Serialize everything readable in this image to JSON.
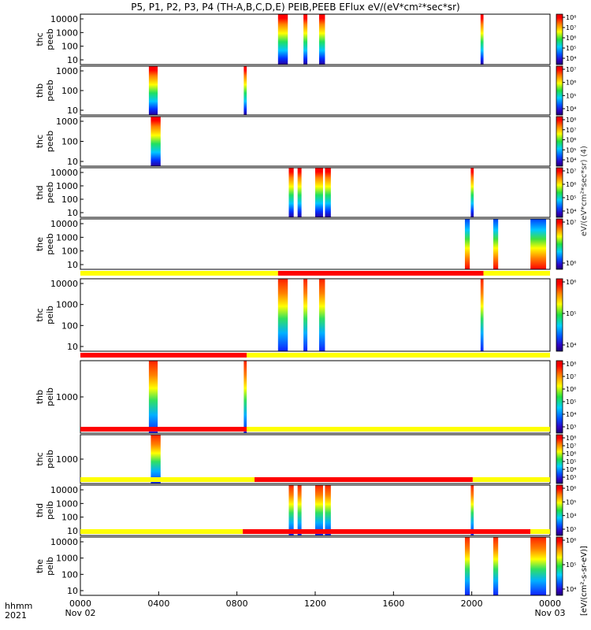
{
  "chart_data": {
    "type": "heatmap",
    "title": "P5, P1, P2, P3, P4 (TH-A,B,C,D,E) PEIB,PEEB EFlux eV/(eV*cm²*sec*sr)",
    "xlabel": "hhmm",
    "year": "2021",
    "x_ticks": [
      {
        "hhmm": "0000",
        "date": "Nov 02"
      },
      {
        "hhmm": "0400",
        "date": ""
      },
      {
        "hhmm": "0800",
        "date": ""
      },
      {
        "hhmm": "1200",
        "date": ""
      },
      {
        "hhmm": "1600",
        "date": ""
      },
      {
        "hhmm": "2000",
        "date": ""
      },
      {
        "hhmm": "0000",
        "date": "Nov 03"
      }
    ],
    "xlim_hours": [
      0,
      24
    ],
    "colorbar_label": "[eV/(cm²-s-sr-eV)]",
    "colorbar_label_overlap": "eV/(eV*cm²*sec*sr) (4)",
    "colors": {
      "mode_yellow": "#ffff00",
      "mode_red": "#ff0000"
    },
    "panels": [
      {
        "id": "thc-peeb",
        "probe": "thc",
        "product": "peeb",
        "y_ticks": [
          "10",
          "100",
          "1000",
          "10000"
        ],
        "colorbar_ticks": [
          "10⁴",
          "10⁵",
          "10⁶",
          "10⁷",
          "10⁸"
        ],
        "bursts": [
          {
            "start": 10.1,
            "end": 10.6
          },
          {
            "start": 11.4,
            "end": 11.6
          },
          {
            "start": 12.2,
            "end": 12.5
          },
          {
            "start": 20.45,
            "end": 20.6
          }
        ]
      },
      {
        "id": "thb-peeb",
        "probe": "thb",
        "product": "peeb",
        "y_ticks": [
          "10",
          "100",
          "1000"
        ],
        "colorbar_ticks": [
          "10⁴",
          "10⁵",
          "10⁶",
          "10⁷"
        ],
        "bursts": [
          {
            "start": 3.5,
            "end": 3.95
          },
          {
            "start": 8.35,
            "end": 8.5
          }
        ]
      },
      {
        "id": "thc-peeb-2",
        "probe": "thc",
        "product": "peeb",
        "y_ticks": [
          "10",
          "100",
          "1000"
        ],
        "colorbar_ticks": [
          "10⁴",
          "10⁵",
          "10⁶",
          "10⁷",
          "10⁸"
        ],
        "bursts": [
          {
            "start": 3.6,
            "end": 4.1
          }
        ]
      },
      {
        "id": "thd-peeb",
        "probe": "thd",
        "product": "peeb",
        "y_ticks": [
          "10",
          "100",
          "1000",
          "10000"
        ],
        "colorbar_ticks": [
          "10⁴",
          "10⁵",
          "10⁶",
          "10⁷"
        ],
        "bursts": [
          {
            "start": 10.65,
            "end": 10.9
          },
          {
            "start": 11.1,
            "end": 11.3
          },
          {
            "start": 12.0,
            "end": 12.4
          },
          {
            "start": 12.5,
            "end": 12.8
          },
          {
            "start": 19.95,
            "end": 20.1
          }
        ]
      },
      {
        "id": "the-peeb",
        "probe": "the",
        "product": "peeb",
        "y_ticks": [
          "10",
          "100",
          "1000",
          "10000"
        ],
        "colorbar_ticks": [
          "10⁶",
          "10⁷"
        ],
        "bursts": [
          {
            "start": 19.65,
            "end": 19.9
          },
          {
            "start": 21.1,
            "end": 21.35
          },
          {
            "start": 23.0,
            "end": 23.8
          }
        ]
      },
      {
        "id": "thc-peib",
        "probe": "thc",
        "product": "peib",
        "y_ticks": [
          "10",
          "100",
          "1000",
          "10000"
        ],
        "colorbar_ticks": [
          "10⁴",
          "10⁵",
          "10⁶"
        ],
        "mode_bar": [
          {
            "start": 0,
            "end": 10.1,
            "color": "yellow"
          },
          {
            "start": 10.1,
            "end": 20.6,
            "color": "red"
          },
          {
            "start": 20.6,
            "end": 24,
            "color": "yellow"
          }
        ],
        "bursts": [
          {
            "start": 10.1,
            "end": 10.6
          },
          {
            "start": 11.4,
            "end": 11.6
          },
          {
            "start": 12.2,
            "end": 12.5
          },
          {
            "start": 20.45,
            "end": 20.6
          }
        ]
      },
      {
        "id": "thb-peib",
        "probe": "thb",
        "product": "peib",
        "y_ticks": [
          "1000"
        ],
        "colorbar_ticks": [
          "10³",
          "10⁴",
          "10⁵",
          "10⁶",
          "10⁷",
          "10⁸"
        ],
        "mode_bar": [
          {
            "start": 0,
            "end": 8.5,
            "color": "red"
          },
          {
            "start": 8.5,
            "end": 24,
            "color": "yellow"
          }
        ],
        "bursts": [
          {
            "start": 3.5,
            "end": 3.95
          },
          {
            "start": 8.35,
            "end": 8.5
          }
        ]
      },
      {
        "id": "thc-peib-2",
        "probe": "thc",
        "product": "peib",
        "y_ticks": [
          "1000"
        ],
        "colorbar_ticks": [
          "10³",
          "10⁴",
          "10⁵",
          "10⁶",
          "10⁷",
          "10⁸"
        ],
        "mode_bar": [
          {
            "start": 0,
            "end": 8.5,
            "color": "red"
          },
          {
            "start": 8.5,
            "end": 24,
            "color": "yellow"
          }
        ],
        "bursts": [
          {
            "start": 3.6,
            "end": 4.1
          }
        ]
      },
      {
        "id": "thd-peib",
        "probe": "thd",
        "product": "peib",
        "y_ticks": [
          "10",
          "100",
          "1000",
          "10000"
        ],
        "colorbar_ticks": [
          "10³",
          "10⁴",
          "10⁵",
          "10⁶"
        ],
        "mode_bar": [
          {
            "start": 0,
            "end": 8.9,
            "color": "yellow"
          },
          {
            "start": 8.9,
            "end": 20.05,
            "color": "red"
          },
          {
            "start": 20.05,
            "end": 24,
            "color": "yellow"
          }
        ],
        "bursts": [
          {
            "start": 10.65,
            "end": 10.9
          },
          {
            "start": 11.1,
            "end": 11.3
          },
          {
            "start": 12.0,
            "end": 12.4
          },
          {
            "start": 12.5,
            "end": 12.8
          },
          {
            "start": 19.95,
            "end": 20.1
          }
        ]
      },
      {
        "id": "the-peib",
        "probe": "the",
        "product": "peib",
        "y_ticks": [
          "10",
          "100",
          "1000",
          "10000"
        ],
        "colorbar_ticks": [
          "10⁴",
          "10⁵",
          "10⁶"
        ],
        "mode_bar": [
          {
            "start": 0,
            "end": 8.3,
            "color": "yellow"
          },
          {
            "start": 8.3,
            "end": 23.0,
            "color": "red"
          },
          {
            "start": 23.0,
            "end": 24,
            "color": "yellow"
          }
        ],
        "bursts": [
          {
            "start": 19.65,
            "end": 19.9
          },
          {
            "start": 21.1,
            "end": 21.35
          },
          {
            "start": 23.0,
            "end": 23.8
          }
        ]
      }
    ]
  }
}
